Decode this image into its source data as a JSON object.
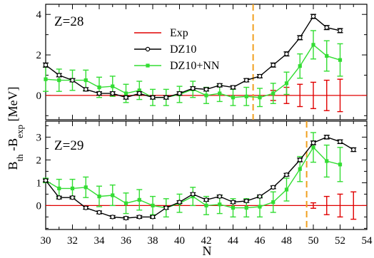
{
  "chart_data": {
    "type": "line",
    "ylabel": "B_th - B_exp [MeV]",
    "xlabel": "N",
    "x_ticks": [
      30,
      32,
      34,
      36,
      38,
      40,
      42,
      44,
      46,
      48,
      50,
      52,
      54
    ],
    "xlim": [
      30,
      54
    ],
    "legend": {
      "placement": "top-center",
      "entries": [
        {
          "label": "Exp",
          "color": "#e00000"
        },
        {
          "label": "DZ10",
          "color": "#000000"
        },
        {
          "label": "DZ10+NN",
          "color": "#33dd33"
        }
      ]
    },
    "panels": [
      {
        "label": "Z=28",
        "ylim": [
          -1.2,
          4.5
        ],
        "y_ticks": [
          0,
          2,
          4
        ],
        "separator_x": 45.5,
        "series": [
          {
            "name": "Exp",
            "x": [
              47,
              48,
              49,
              50,
              51,
              52
            ],
            "y": [
              0,
              0,
              0,
              0,
              0,
              0
            ],
            "err": [
              0.25,
              0.4,
              0.55,
              0.65,
              0.75,
              0.8
            ]
          },
          {
            "name": "DZ10",
            "x": [
              30,
              31,
              32,
              33,
              34,
              35,
              36,
              37,
              38,
              39,
              40,
              41,
              42,
              43,
              44,
              45,
              46,
              47,
              48,
              49,
              50,
              51,
              52
            ],
            "y": [
              1.5,
              1.0,
              0.75,
              0.3,
              0.1,
              0.1,
              -0.1,
              0.1,
              -0.1,
              -0.1,
              0.1,
              0.35,
              0.3,
              0.5,
              0.4,
              0.75,
              0.95,
              1.5,
              2.05,
              2.85,
              3.9,
              3.35,
              3.2
            ],
            "err": [
              0.1,
              0.08,
              0.08,
              0.08,
              0.08,
              0.08,
              0.08,
              0.08,
              0.08,
              0.08,
              0.08,
              0.08,
              0.08,
              0.08,
              0.08,
              0.08,
              0.08,
              0.1,
              0.1,
              0.1,
              0.1,
              0.1,
              0.1
            ]
          },
          {
            "name": "DZ10+NN",
            "x": [
              30,
              31,
              32,
              33,
              34,
              35,
              36,
              37,
              38,
              39,
              40,
              41,
              42,
              43,
              44,
              45,
              46,
              47,
              48,
              49,
              50,
              51,
              52
            ],
            "y": [
              0.8,
              0.75,
              0.75,
              0.75,
              0.4,
              0.45,
              0.1,
              0.25,
              -0.1,
              -0.1,
              0.05,
              0.3,
              0.0,
              0.1,
              -0.1,
              -0.05,
              -0.1,
              0.1,
              0.6,
              1.45,
              2.5,
              1.95,
              1.75
            ],
            "err": [
              0.6,
              0.55,
              0.5,
              0.5,
              0.5,
              0.5,
              0.45,
              0.45,
              0.4,
              0.4,
              0.4,
              0.4,
              0.4,
              0.4,
              0.4,
              0.45,
              0.45,
              0.5,
              0.55,
              0.6,
              0.7,
              0.75,
              0.8
            ]
          }
        ]
      },
      {
        "label": "Z=29",
        "ylim": [
          -1.05,
          3.7
        ],
        "y_ticks": [
          0,
          1,
          2,
          3
        ],
        "separator_x": 49.5,
        "series": [
          {
            "name": "Exp",
            "x": [
              50,
              51,
              52,
              53
            ],
            "y": [
              0,
              0,
              0,
              0
            ],
            "err": [
              0.12,
              0.4,
              0.5,
              0.6
            ]
          },
          {
            "name": "DZ10",
            "x": [
              30,
              31,
              32,
              33,
              34,
              35,
              36,
              37,
              38,
              39,
              40,
              41,
              42,
              43,
              44,
              45,
              46,
              47,
              48,
              49,
              50,
              51,
              52,
              53
            ],
            "y": [
              1.1,
              0.35,
              0.35,
              -0.1,
              -0.3,
              -0.5,
              -0.55,
              -0.5,
              -0.5,
              -0.1,
              0.15,
              0.5,
              0.25,
              0.4,
              0.15,
              0.2,
              0.4,
              0.8,
              1.35,
              2.0,
              2.75,
              3.0,
              2.8,
              2.45
            ],
            "err": [
              0.06,
              0.06,
              0.06,
              0.06,
              0.06,
              0.06,
              0.06,
              0.06,
              0.06,
              0.06,
              0.06,
              0.06,
              0.06,
              0.06,
              0.06,
              0.06,
              0.06,
              0.06,
              0.06,
              0.08,
              0.08,
              0.08,
              0.08,
              0.08
            ]
          },
          {
            "name": "DZ10+NN",
            "x": [
              30,
              31,
              32,
              33,
              34,
              35,
              36,
              37,
              38,
              39,
              40,
              41,
              42,
              43,
              44,
              45,
              46,
              47,
              48,
              49,
              50,
              51,
              52
            ],
            "y": [
              1.1,
              0.75,
              0.75,
              0.8,
              0.4,
              0.45,
              0.1,
              0.25,
              0.0,
              -0.1,
              0.1,
              0.4,
              0.0,
              0.05,
              -0.1,
              -0.1,
              -0.05,
              0.15,
              0.7,
              1.6,
              2.55,
              1.95,
              1.8
            ],
            "err": [
              0.1,
              0.4,
              0.4,
              0.45,
              0.45,
              0.45,
              0.45,
              0.45,
              0.4,
              0.4,
              0.4,
              0.4,
              0.4,
              0.4,
              0.4,
              0.4,
              0.45,
              0.45,
              0.5,
              0.55,
              0.65,
              0.7,
              0.75
            ]
          }
        ]
      }
    ]
  },
  "colors": {
    "exp": "#e00000",
    "dz10": "#000000",
    "dz10nn": "#33dd33",
    "separator": "#f0a020"
  }
}
